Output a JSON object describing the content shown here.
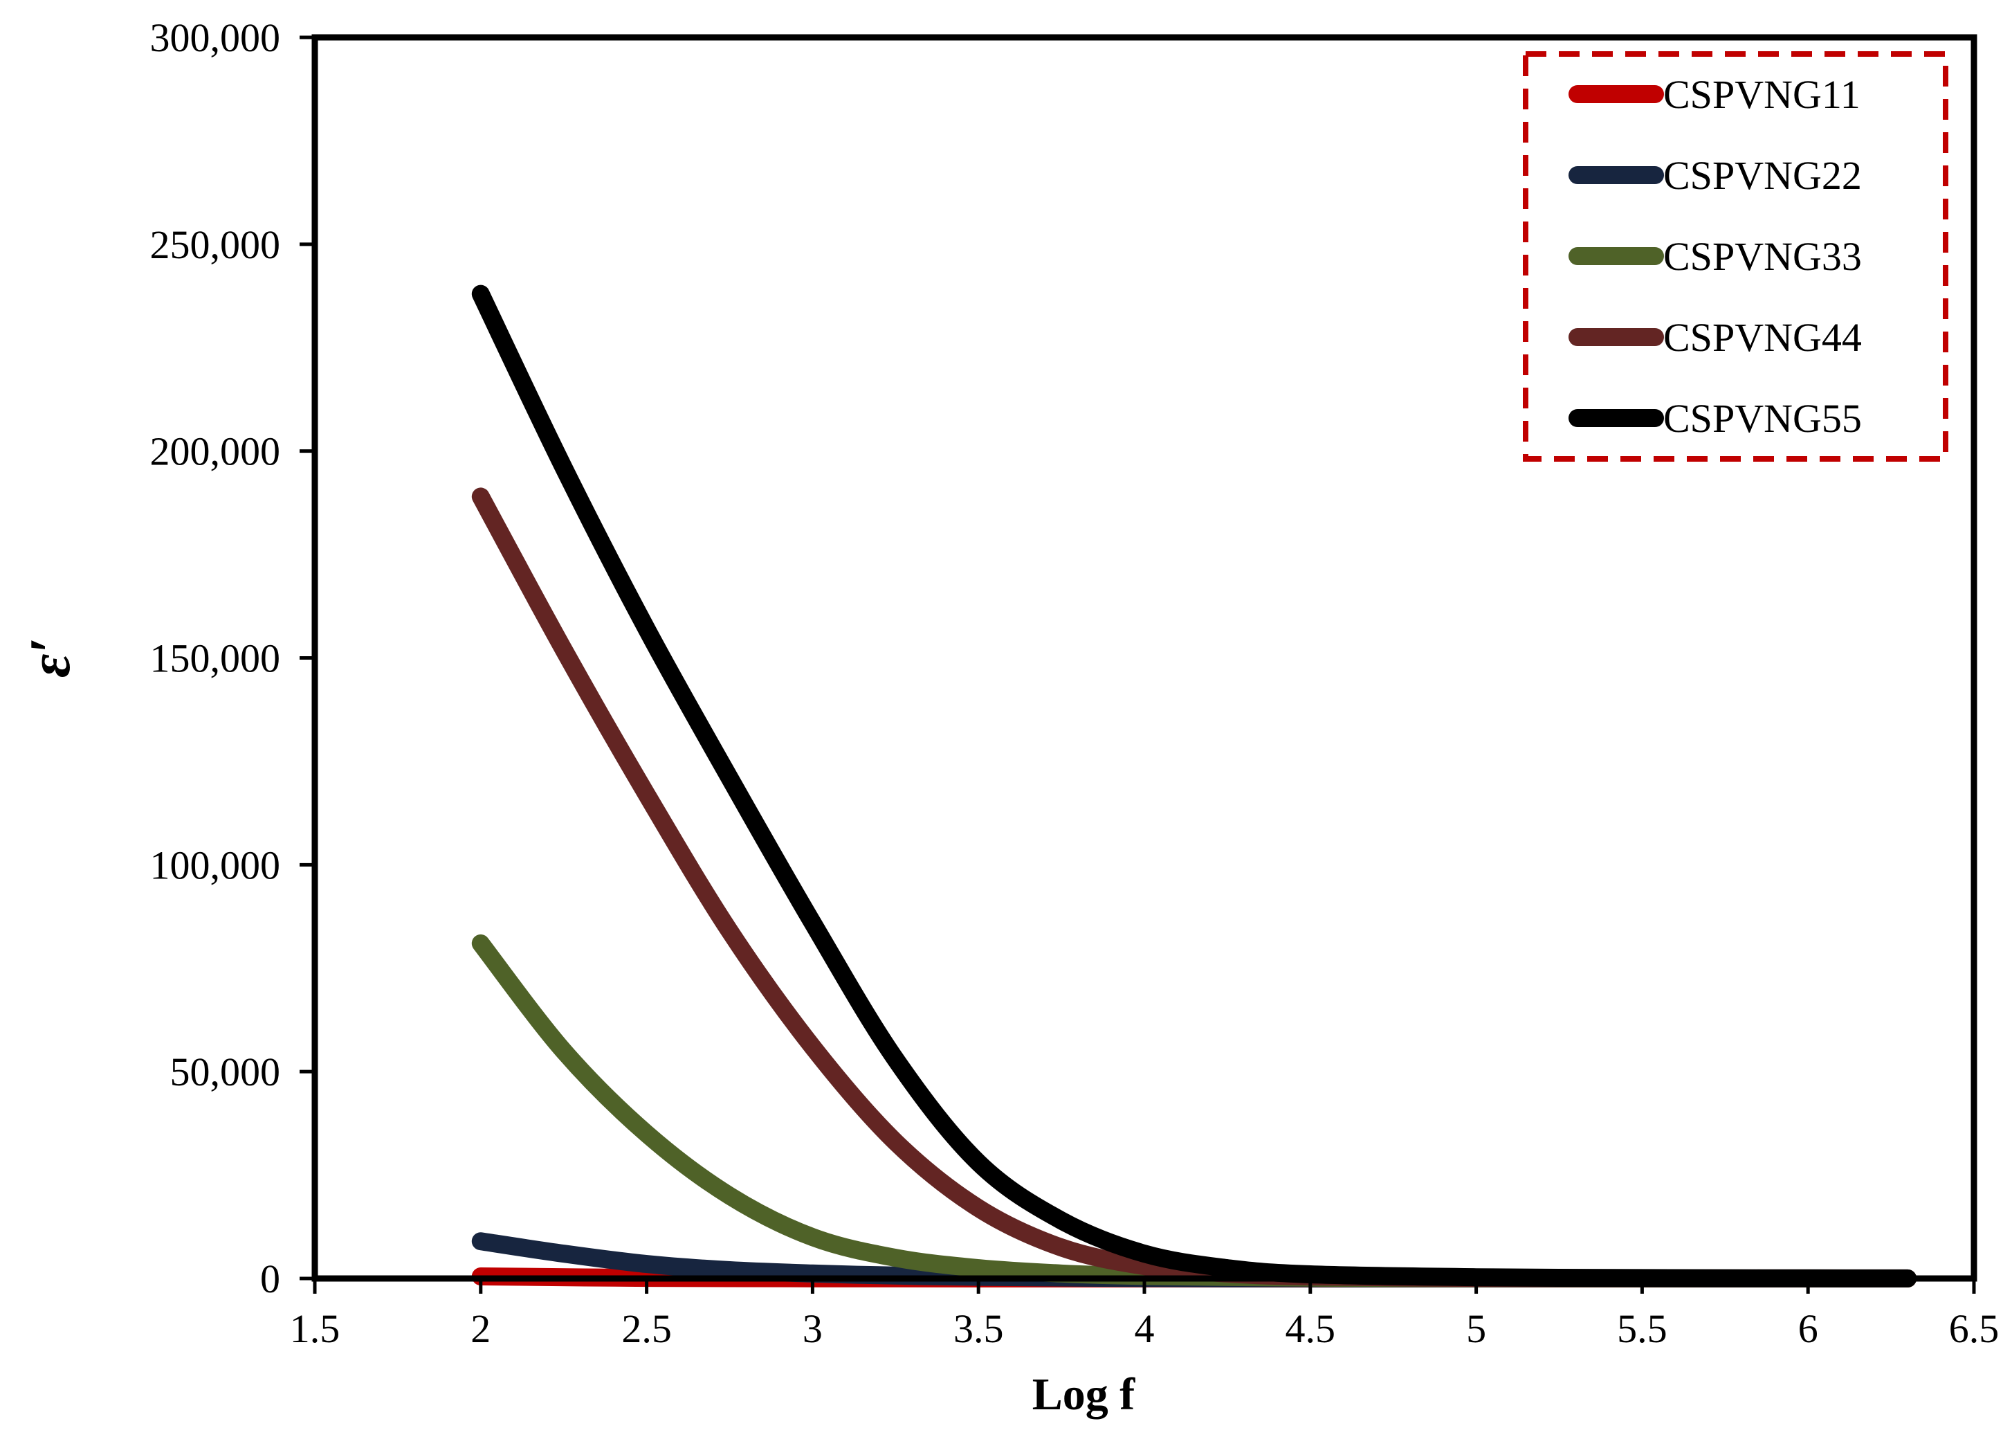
{
  "chart_data": {
    "type": "line",
    "title": "",
    "xlabel": "Log f",
    "ylabel": "ε′",
    "xlim": [
      1.5,
      6.5
    ],
    "ylim": [
      0,
      300000
    ],
    "x_ticks": [
      1.5,
      2,
      2.5,
      3,
      3.5,
      4,
      4.5,
      5,
      5.5,
      6,
      6.5
    ],
    "x_tick_labels": [
      "1.5",
      "2",
      "2.5",
      "3",
      "3.5",
      "4",
      "4.5",
      "5",
      "5.5",
      "6",
      "6.5"
    ],
    "y_ticks": [
      0,
      50000,
      100000,
      150000,
      200000,
      250000,
      300000
    ],
    "y_tick_labels": [
      "0",
      "50,000",
      "100,000",
      "150,000",
      "200,000",
      "250,000",
      "300,000"
    ],
    "grid": false,
    "legend_position": "top-right",
    "series": [
      {
        "name": "CSPVNG11",
        "color": "#c00000",
        "points": [
          [
            2.0,
            500
          ],
          [
            2.5,
            150
          ],
          [
            3.0,
            50
          ],
          [
            3.5,
            20
          ],
          [
            4.0,
            10
          ],
          [
            5.0,
            5
          ],
          [
            6.3,
            3
          ]
        ]
      },
      {
        "name": "CSPVNG22",
        "color": "#17253f",
        "points": [
          [
            2.0,
            9000
          ],
          [
            2.25,
            6000
          ],
          [
            2.5,
            3500
          ],
          [
            2.75,
            2000
          ],
          [
            3.0,
            1200
          ],
          [
            3.25,
            700
          ],
          [
            3.5,
            400
          ],
          [
            4.0,
            100
          ],
          [
            4.5,
            30
          ],
          [
            5.0,
            10
          ],
          [
            6.3,
            3
          ]
        ]
      },
      {
        "name": "CSPVNG33",
        "color": "#4f6228",
        "points": [
          [
            2.0,
            81000
          ],
          [
            2.25,
            55000
          ],
          [
            2.5,
            35000
          ],
          [
            2.75,
            20000
          ],
          [
            3.0,
            10000
          ],
          [
            3.25,
            5000
          ],
          [
            3.5,
            2500
          ],
          [
            3.75,
            1200
          ],
          [
            4.0,
            600
          ],
          [
            4.5,
            200
          ],
          [
            5.0,
            60
          ],
          [
            5.5,
            20
          ],
          [
            6.3,
            5
          ]
        ]
      },
      {
        "name": "CSPVNG44",
        "color": "#632523",
        "points": [
          [
            2.0,
            189000
          ],
          [
            2.25,
            152000
          ],
          [
            2.5,
            117000
          ],
          [
            2.75,
            84000
          ],
          [
            3.0,
            56000
          ],
          [
            3.25,
            33000
          ],
          [
            3.5,
            17000
          ],
          [
            3.75,
            7500
          ],
          [
            4.0,
            3000
          ],
          [
            4.25,
            1200
          ],
          [
            4.5,
            500
          ],
          [
            5.0,
            150
          ],
          [
            5.5,
            50
          ],
          [
            6.3,
            10
          ]
        ]
      },
      {
        "name": "CSPVNG55",
        "color": "#000000",
        "points": [
          [
            2.0,
            238000
          ],
          [
            2.25,
            196000
          ],
          [
            2.5,
            157000
          ],
          [
            2.75,
            121000
          ],
          [
            3.0,
            86000
          ],
          [
            3.25,
            53000
          ],
          [
            3.5,
            28000
          ],
          [
            3.75,
            14000
          ],
          [
            4.0,
            6000
          ],
          [
            4.25,
            2500
          ],
          [
            4.5,
            1000
          ],
          [
            5.0,
            300
          ],
          [
            5.5,
            100
          ],
          [
            6.0,
            40
          ],
          [
            6.3,
            20
          ]
        ]
      }
    ]
  }
}
